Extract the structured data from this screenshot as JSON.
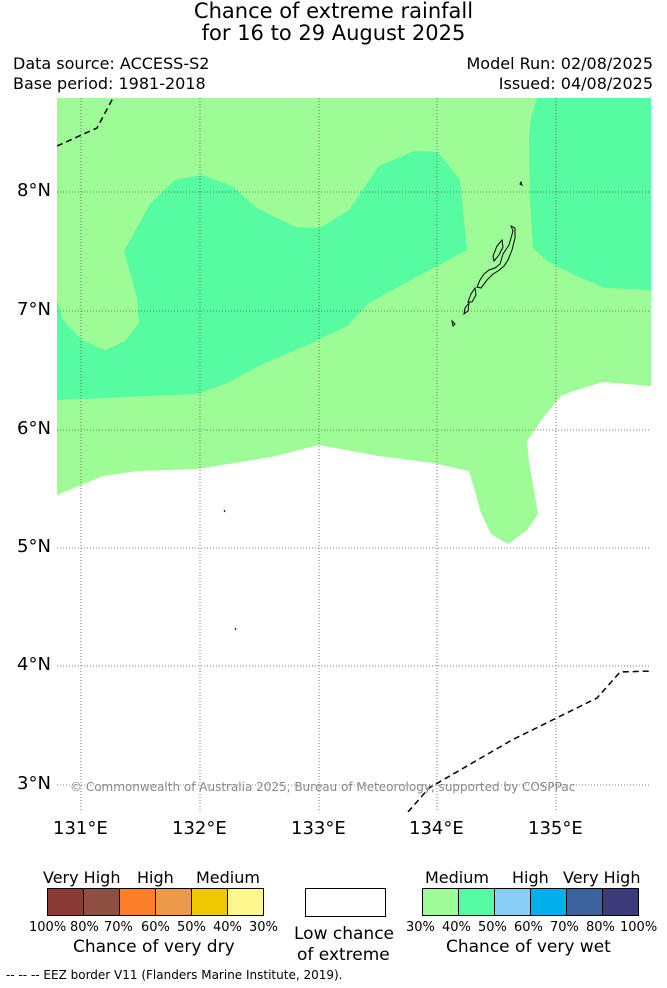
{
  "title": {
    "line1": "Chance of extreme rainfall",
    "line2": "for 16 to 29 August 2025"
  },
  "meta": {
    "data_source": "Data source: ACCESS-S2",
    "base_period": "Base period: 1981-2018",
    "model_run": "Model Run: 02/08/2025",
    "issued": "Issued: 04/08/2025"
  },
  "map": {
    "lat_labels": [
      "8°N",
      "7°N",
      "6°N",
      "5°N",
      "4°N",
      "3°N"
    ],
    "lon_labels": [
      "131°E",
      "132°E",
      "133°E",
      "134°E",
      "135°E"
    ],
    "copyright": "© Commonwealth of Australia 2025, Bureau of Meteorology, supported by COSPPac",
    "colors": {
      "medium_wet": "#9efc97",
      "high_wet_50": "#57fba2",
      "low": "#ffffff",
      "eez_border": "#000000"
    }
  },
  "legend": {
    "dry": {
      "categories": [
        "Very High",
        "High",
        "Medium"
      ],
      "percents": [
        "100%",
        "80%",
        "70%",
        "60%",
        "50%",
        "40%",
        "30%"
      ],
      "colors": [
        "#8b3a34",
        "#8c5040",
        "#fb7f2a",
        "#ea9a49",
        "#f0c800",
        "#fdf790"
      ],
      "title": "Chance of very dry"
    },
    "low": {
      "line1": "Low chance",
      "line2": "of extreme",
      "color": "#ffffff"
    },
    "wet": {
      "categories": [
        "Medium",
        "High",
        "Very High"
      ],
      "percents": [
        "30%",
        "40%",
        "50%",
        "60%",
        "70%",
        "80%",
        "100%"
      ],
      "colors": [
        "#9efc97",
        "#57fba2",
        "#87cff8",
        "#00b0eb",
        "#3a63a0",
        "#3b3a7a"
      ],
      "title": "Chance of very wet"
    }
  },
  "footer": {
    "eez": "--  --  -- EEZ border V11 (Flanders Marine Institute, 2019)."
  }
}
